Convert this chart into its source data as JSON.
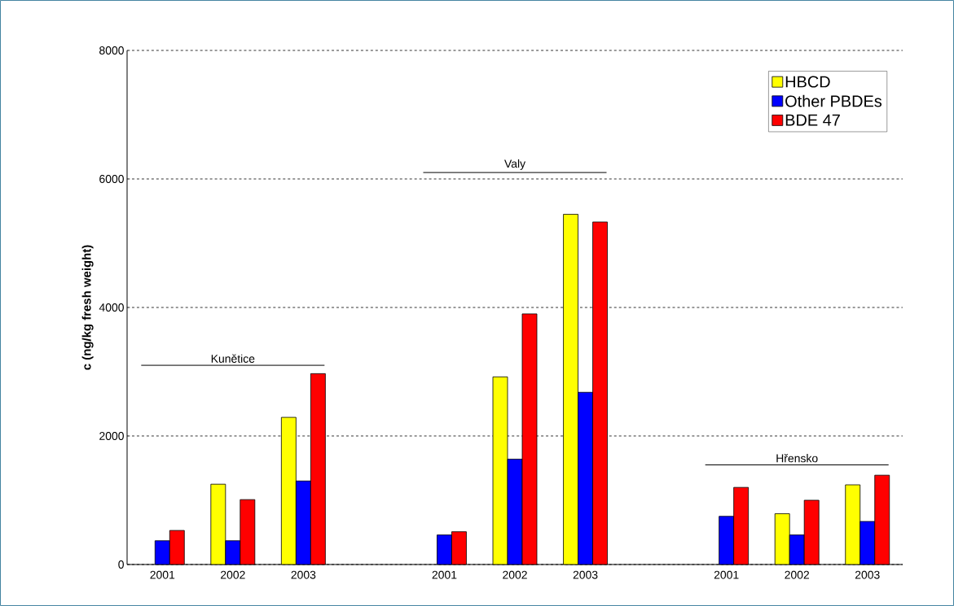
{
  "chart_data": {
    "type": "bar",
    "ylabel": "c (ng/kg fresh weight)",
    "categories": [
      "2001",
      "2002",
      "2003",
      null,
      "2001",
      "2002",
      "2003",
      null,
      "2001",
      "2002",
      "2003"
    ],
    "series": [
      {
        "name": "HBCD",
        "color": "#ffff00",
        "values": [
          null,
          1250,
          2290,
          null,
          null,
          2920,
          5450,
          null,
          null,
          790,
          1240
        ]
      },
      {
        "name": "Other PBDEs",
        "color": "#0000ff",
        "values": [
          370,
          370,
          1300,
          null,
          460,
          1640,
          2680,
          null,
          750,
          460,
          670
        ]
      },
      {
        "name": "BDE 47",
        "color": "#ff0000",
        "values": [
          530,
          1010,
          2970,
          null,
          510,
          3900,
          5330,
          null,
          1200,
          1000,
          1390
        ]
      }
    ],
    "ylim": [
      0,
      8000
    ],
    "yticks": [
      0,
      2000,
      4000,
      6000,
      8000
    ],
    "grid": "y",
    "legend": "top right",
    "annotations": [
      "Kunětice",
      "Valy",
      "Hřensko"
    ]
  }
}
